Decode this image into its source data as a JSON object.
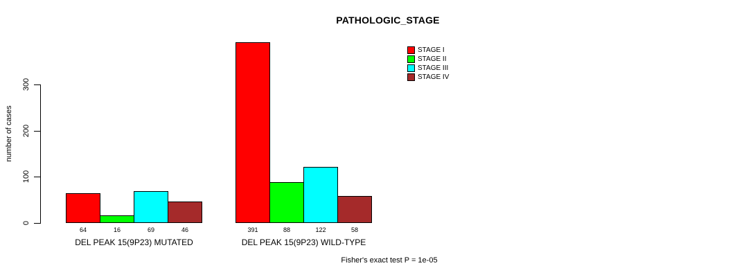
{
  "title": "PATHOLOGIC_STAGE",
  "footer": "Fisher's exact test P = 1e-05",
  "chart_data": {
    "type": "bar",
    "title": "PATHOLOGIC_STAGE",
    "xlabel": "",
    "ylabel": "number of cases",
    "ylim": [
      0,
      400
    ],
    "yticks": [
      0,
      100,
      200,
      300
    ],
    "grid": false,
    "legend_position": "top-right",
    "categories": [
      "DEL PEAK 15(9P23) MUTATED",
      "DEL PEAK 15(9P23) WILD-TYPE"
    ],
    "groups": [
      {
        "label": "DEL PEAK 15(9P23) MUTATED",
        "values": [
          64,
          16,
          69,
          46
        ]
      },
      {
        "label": "DEL PEAK 15(9P23) WILD-TYPE",
        "values": [
          391,
          88,
          122,
          58
        ]
      }
    ],
    "series": [
      {
        "name": "STAGE I",
        "color": "#FF0000",
        "values": [
          64,
          391
        ]
      },
      {
        "name": "STAGE II",
        "color": "#00FF00",
        "values": [
          16,
          88
        ]
      },
      {
        "name": "STAGE III",
        "color": "#00FFFF",
        "values": [
          69,
          122
        ]
      },
      {
        "name": "STAGE IV",
        "color": "#A52A2A",
        "values": [
          46,
          58
        ]
      }
    ],
    "annotation": "Fisher's exact test P = 1e-05"
  }
}
